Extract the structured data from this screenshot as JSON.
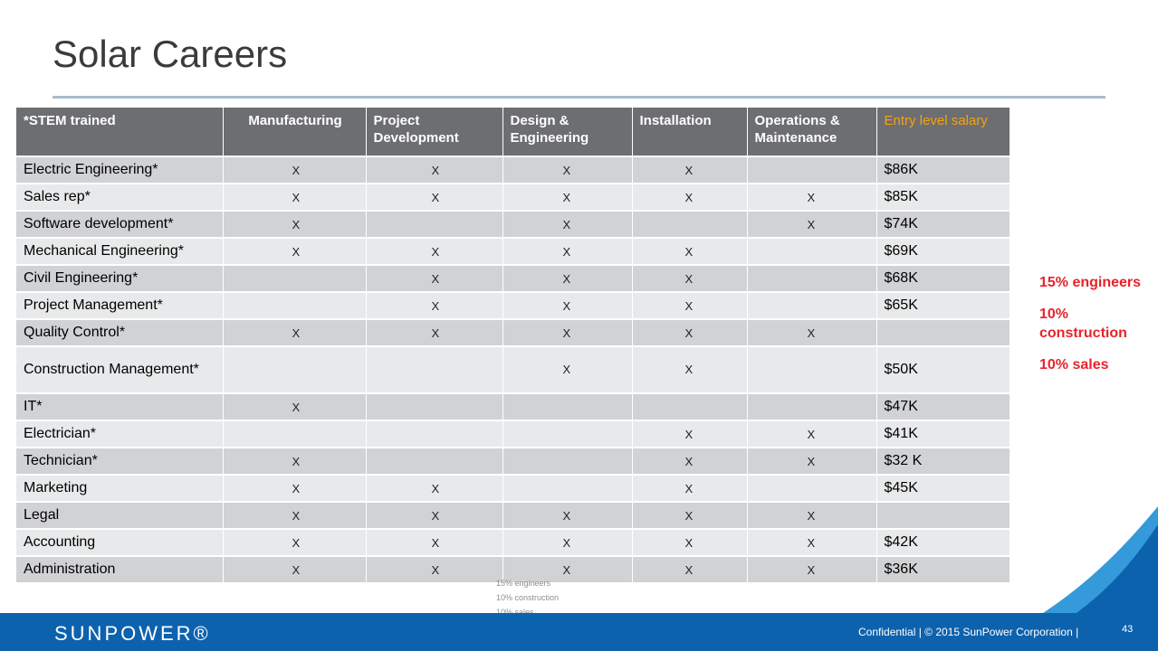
{
  "slide": {
    "title": "Solar Careers",
    "callouts": [
      "15% engineers",
      "10% construction",
      "10% sales"
    ],
    "notes": [
      "15% engineers",
      "10% construction",
      "10% sales"
    ],
    "footer": {
      "logo": "SUNPOWER®",
      "confidential": "Confidential | © 2015 SunPower Corporation |",
      "page_number": "43"
    }
  },
  "table": {
    "headers": [
      "*STEM trained",
      "Manufacturing",
      "Project Development",
      "Design & Engineering",
      "Installation",
      "Operations & Maintenance",
      "Entry level salary"
    ],
    "rows": [
      {
        "role": "Electric Engineering*",
        "c1": "X",
        "c2": "X",
        "c3": "X",
        "c4": "X",
        "c5": "",
        "salary": "$86K"
      },
      {
        "role": "Sales rep*",
        "c1": "X",
        "c2": "X",
        "c3": "X",
        "c4": "X",
        "c5": "X",
        "salary": "$85K"
      },
      {
        "role": "Software development*",
        "c1": "X",
        "c2": "",
        "c3": "X",
        "c4": "",
        "c5": "X",
        "salary": "$74K"
      },
      {
        "role": "Mechanical Engineering*",
        "c1": "X",
        "c2": "X",
        "c3": "X",
        "c4": "X",
        "c5": "",
        "salary": "$69K"
      },
      {
        "role": "Civil Engineering*",
        "c1": "",
        "c2": "X",
        "c3": "X",
        "c4": "X",
        "c5": "",
        "salary": "$68K"
      },
      {
        "role": "Project Management*",
        "c1": "",
        "c2": "X",
        "c3": "X",
        "c4": "X",
        "c5": "",
        "salary": "$65K"
      },
      {
        "role": "Quality Control*",
        "c1": "X",
        "c2": "X",
        "c3": "X",
        "c4": "X",
        "c5": "X",
        "salary": ""
      },
      {
        "role": "Construction Management*",
        "c1": "",
        "c2": "",
        "c3": "X",
        "c4": "X",
        "c5": "",
        "salary": "$50K"
      },
      {
        "role": "IT*",
        "c1": "X",
        "c2": "",
        "c3": "",
        "c4": "",
        "c5": "",
        "salary": "$47K"
      },
      {
        "role": "Electrician*",
        "c1": "",
        "c2": "",
        "c3": "",
        "c4": "X",
        "c5": "X",
        "salary": "$41K"
      },
      {
        "role": "Technician*",
        "c1": "X",
        "c2": "",
        "c3": "",
        "c4": "X",
        "c5": "X",
        "salary": "$32 K"
      },
      {
        "role": "Marketing",
        "c1": "X",
        "c2": "X",
        "c3": "",
        "c4": "X",
        "c5": "",
        "salary": "$45K"
      },
      {
        "role": "Legal",
        "c1": "X",
        "c2": "X",
        "c3": "X",
        "c4": "X",
        "c5": "X",
        "salary": ""
      },
      {
        "role": "Accounting",
        "c1": "X",
        "c2": "X",
        "c3": "X",
        "c4": "X",
        "c5": "X",
        "salary": "$42K"
      },
      {
        "role": "Administration",
        "c1": "X",
        "c2": "X",
        "c3": "X",
        "c4": "X",
        "c5": "X",
        "salary": "$36K"
      }
    ]
  },
  "colors": {
    "header_bg": "#6d6e71",
    "salary_header": "#f3a311",
    "callout_red": "#e8232a",
    "footer_blue": "#0d62ae"
  }
}
